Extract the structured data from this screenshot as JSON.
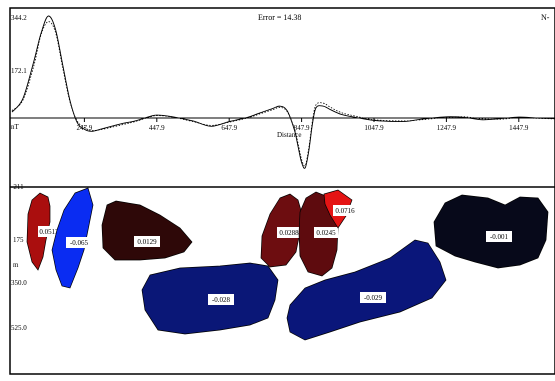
{
  "chart_data": [
    {
      "type": "line",
      "title": "Error = 14.38",
      "corner_label": "N-",
      "xlabel": "Distance",
      "ylabel": "nT",
      "x_ticks": [
        247.9,
        447.9,
        647.9,
        847.9,
        1047.9,
        1247.9,
        1447.9
      ],
      "y_ticks": [
        "344.2",
        "172.1",
        "nT",
        "-211"
      ],
      "xlim": [
        47.9,
        1547.9
      ],
      "ylim": [
        -211,
        344.2
      ],
      "series": [
        {
          "style": "solid",
          "x": [
            47.9,
            77.9,
            107.9,
            127.9,
            147.9,
            167.9,
            187.9,
            207.9,
            227.9,
            247.9,
            267.9,
            297.9,
            347.9,
            387.9,
            427.9,
            447.9,
            487.9,
            547.9,
            597.9,
            647.9,
            697.9,
            727.9,
            767.9,
            787.9,
            807.9,
            827.9,
            837.9,
            847.9,
            857.9,
            867.9,
            877.9,
            887.9,
            907.9,
            927.9,
            957.9,
            997.9,
            1047.9,
            1127.9,
            1177.9,
            1247.9,
            1297.9,
            1347.9,
            1397.9,
            1447.9,
            1497.9,
            1547.9
          ],
          "y": [
            20,
            65,
            190,
            285,
            344,
            300,
            180,
            60,
            -15,
            -38,
            -45,
            -36,
            -20,
            -10,
            5,
            10,
            5,
            -10,
            -28,
            -12,
            2,
            15,
            32,
            40,
            25,
            -40,
            -95,
            -150,
            -168,
            -110,
            -20,
            35,
            40,
            28,
            12,
            2,
            -8,
            -12,
            -4,
            4,
            2,
            -6,
            -2,
            3,
            0,
            -2
          ]
        },
        {
          "style": "dotted",
          "x": [
            47.9,
            77.9,
            107.9,
            127.9,
            147.9,
            167.9,
            187.9,
            207.9,
            227.9,
            247.9,
            267.9,
            297.9,
            347.9,
            387.9,
            427.9,
            447.9,
            487.9,
            547.9,
            597.9,
            647.9,
            697.9,
            727.9,
            767.9,
            787.9,
            807.9,
            827.9,
            837.9,
            847.9,
            857.9,
            867.9,
            877.9,
            887.9,
            907.9,
            927.9,
            957.9,
            997.9,
            1047.9,
            1127.9,
            1177.9,
            1247.9,
            1297.9,
            1347.9,
            1397.9,
            1447.9,
            1497.9,
            1547.9
          ],
          "y": [
            25,
            60,
            175,
            280,
            325,
            290,
            170,
            55,
            -10,
            -32,
            -42,
            -38,
            -24,
            -12,
            3,
            8,
            4,
            -12,
            -25,
            -14,
            0,
            12,
            28,
            36,
            22,
            -35,
            -85,
            -140,
            -160,
            -100,
            -10,
            45,
            50,
            36,
            18,
            6,
            -6,
            -10,
            -6,
            2,
            4,
            -3,
            -4,
            1,
            -1,
            -3
          ]
        }
      ]
    },
    {
      "type": "polygons",
      "depth_ticks": [
        "175",
        "350.0",
        "525.0"
      ],
      "depth_unit": "m",
      "bodies": [
        {
          "label": "0.0513",
          "value": 0.0513,
          "color": "#aa0e0e"
        },
        {
          "label": "-0.065",
          "value": -0.065,
          "color": "#0a2cf2"
        },
        {
          "label": "0.0129",
          "value": 0.0129,
          "color": "#2e0808"
        },
        {
          "label": "0.0288",
          "value": 0.0288,
          "color": "#6d0d10"
        },
        {
          "label": "0.0245",
          "value": 0.0245,
          "color": "#5e0b0e"
        },
        {
          "label": "0.0716",
          "value": 0.0716,
          "color": "#e41414"
        },
        {
          "label": "-0.028",
          "value": -0.028,
          "color": "#0a1777"
        },
        {
          "label": "-0.029",
          "value": -0.029,
          "color": "#0a167a"
        },
        {
          "label": "-0.001",
          "value": -0.001,
          "color": "#07091a"
        }
      ]
    }
  ]
}
